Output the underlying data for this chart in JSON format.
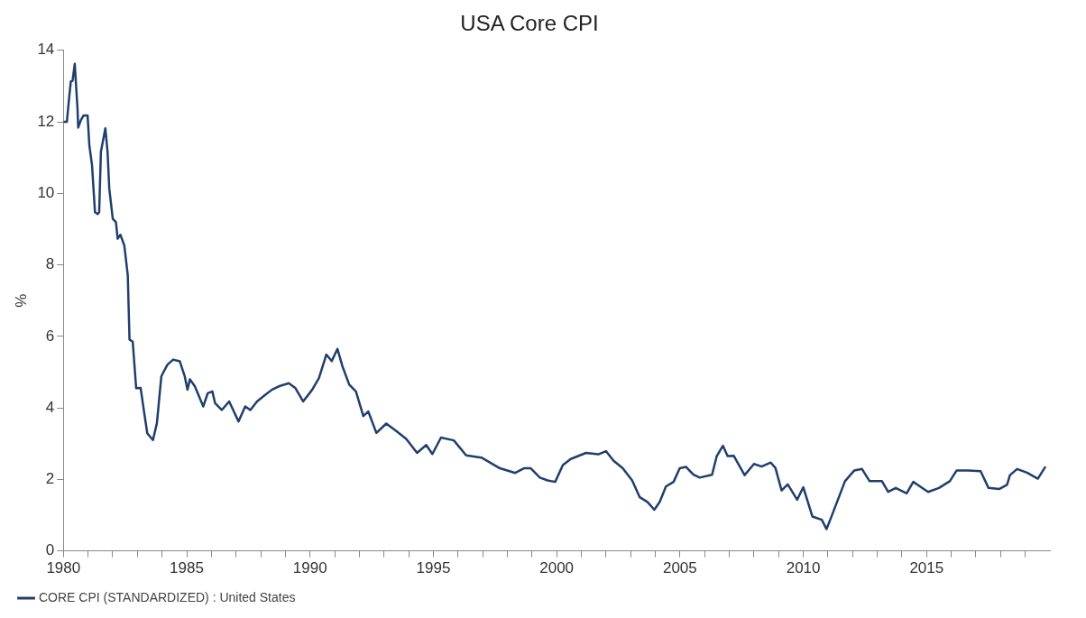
{
  "chart_data": {
    "type": "line",
    "title": "USA Core CPI",
    "ylabel": "%",
    "xlim": [
      1980,
      2020
    ],
    "xticks": [
      {
        "value": 1980,
        "label": "1980"
      },
      {
        "value": 1981,
        "label": null
      },
      {
        "value": 1982,
        "label": null
      },
      {
        "value": 1983,
        "label": null
      },
      {
        "value": 1984,
        "label": null
      },
      {
        "value": 1985,
        "label": "1985"
      },
      {
        "value": 1986,
        "label": null
      },
      {
        "value": 1987,
        "label": null
      },
      {
        "value": 1988,
        "label": null
      },
      {
        "value": 1989,
        "label": null
      },
      {
        "value": 1990,
        "label": "1990"
      },
      {
        "value": 1991,
        "label": null
      },
      {
        "value": 1992,
        "label": null
      },
      {
        "value": 1993,
        "label": null
      },
      {
        "value": 1994,
        "label": null
      },
      {
        "value": 1995,
        "label": "1995"
      },
      {
        "value": 1996,
        "label": null
      },
      {
        "value": 1997,
        "label": null
      },
      {
        "value": 1998,
        "label": null
      },
      {
        "value": 1999,
        "label": null
      },
      {
        "value": 2000,
        "label": "2000"
      },
      {
        "value": 2001,
        "label": null
      },
      {
        "value": 2002,
        "label": null
      },
      {
        "value": 2003,
        "label": null
      },
      {
        "value": 2004,
        "label": null
      },
      {
        "value": 2005,
        "label": "2005"
      },
      {
        "value": 2006,
        "label": null
      },
      {
        "value": 2007,
        "label": null
      },
      {
        "value": 2008,
        "label": null
      },
      {
        "value": 2009,
        "label": null
      },
      {
        "value": 2010,
        "label": "2010"
      },
      {
        "value": 2011,
        "label": null
      },
      {
        "value": 2012,
        "label": null
      },
      {
        "value": 2013,
        "label": null
      },
      {
        "value": 2014,
        "label": null
      },
      {
        "value": 2015,
        "label": "2015"
      },
      {
        "value": 2016,
        "label": null
      },
      {
        "value": 2017,
        "label": null
      },
      {
        "value": 2018,
        "label": null
      },
      {
        "value": 2019,
        "label": null
      }
    ],
    "ylim": [
      0,
      14
    ],
    "yticks": [
      0,
      2,
      4,
      6,
      8,
      10,
      12,
      14
    ],
    "grid": false,
    "legend": "bottom left",
    "marker": "none",
    "line_style": "solid",
    "series": [
      {
        "name": "CORE CPI (STANDARDIZED) : United States",
        "color": "#1f3f6e",
        "x": [
          1980.0,
          1980.14,
          1980.23,
          1980.3,
          1980.37,
          1980.46,
          1980.57,
          1980.6,
          1980.71,
          1980.82,
          1980.98,
          1981.05,
          1981.16,
          1981.28,
          1981.39,
          1981.45,
          1981.52,
          1981.7,
          1981.79,
          1981.86,
          1982.0,
          1982.13,
          1982.2,
          1982.31,
          1982.47,
          1982.61,
          1982.68,
          1982.81,
          1982.95,
          1983.13,
          1983.26,
          1983.4,
          1983.63,
          1983.79,
          1983.97,
          1984.08,
          1984.22,
          1984.45,
          1984.72,
          1984.92,
          1985.03,
          1985.13,
          1985.33,
          1985.67,
          1985.85,
          1986.04,
          1986.15,
          1986.42,
          1986.72,
          1987.1,
          1987.37,
          1987.58,
          1987.85,
          1988.19,
          1988.46,
          1988.73,
          1989.14,
          1989.41,
          1989.72,
          1990.09,
          1990.36,
          1990.66,
          1990.88,
          1991.11,
          1991.31,
          1991.59,
          1991.86,
          1992.16,
          1992.36,
          1992.69,
          1993.09,
          1993.52,
          1993.9,
          1994.34,
          1994.71,
          1994.96,
          1995.31,
          1995.83,
          1996.33,
          1996.95,
          1997.7,
          1998.32,
          1998.67,
          1998.95,
          1999.32,
          1999.63,
          1999.94,
          2000.25,
          2000.57,
          2001.19,
          2001.69,
          2002.0,
          2002.31,
          2002.68,
          2003.06,
          2003.37,
          2003.68,
          2003.96,
          2004.18,
          2004.43,
          2004.74,
          2004.99,
          2005.24,
          2005.55,
          2005.8,
          2006.3,
          2006.49,
          2006.74,
          2006.93,
          2007.18,
          2007.62,
          2008.0,
          2008.31,
          2008.68,
          2008.87,
          2009.12,
          2009.37,
          2009.75,
          2010.0,
          2010.37,
          2010.75,
          2010.94,
          2011.12,
          2011.69,
          2012.07,
          2012.38,
          2012.69,
          2013.19,
          2013.44,
          2013.75,
          2014.19,
          2014.46,
          2015.06,
          2015.5,
          2015.94,
          2016.22,
          2016.69,
          2017.19,
          2017.51,
          2017.94,
          2018.26,
          2018.38,
          2018.67,
          2019.07,
          2019.51,
          2019.82
        ],
        "values": [
          12.0,
          12.0,
          12.66,
          13.13,
          13.15,
          13.62,
          12.38,
          11.84,
          12.05,
          12.18,
          12.18,
          11.35,
          10.79,
          9.47,
          9.42,
          9.47,
          11.16,
          11.82,
          11.16,
          10.13,
          9.29,
          9.19,
          8.73,
          8.84,
          8.54,
          7.7,
          5.91,
          5.85,
          4.55,
          4.56,
          3.94,
          3.29,
          3.1,
          3.57,
          4.88,
          5.03,
          5.21,
          5.35,
          5.3,
          4.88,
          4.51,
          4.8,
          4.6,
          4.04,
          4.41,
          4.46,
          4.13,
          3.94,
          4.18,
          3.62,
          4.04,
          3.94,
          4.18,
          4.37,
          4.51,
          4.6,
          4.69,
          4.55,
          4.18,
          4.51,
          4.83,
          5.49,
          5.31,
          5.65,
          5.17,
          4.65,
          4.46,
          3.77,
          3.9,
          3.3,
          3.56,
          3.34,
          3.13,
          2.74,
          2.96,
          2.71,
          3.17,
          3.09,
          2.67,
          2.61,
          2.31,
          2.18,
          2.31,
          2.31,
          2.05,
          1.97,
          1.93,
          2.4,
          2.57,
          2.74,
          2.7,
          2.79,
          2.52,
          2.31,
          1.97,
          1.5,
          1.37,
          1.15,
          1.37,
          1.8,
          1.93,
          2.31,
          2.35,
          2.13,
          2.05,
          2.13,
          2.65,
          2.94,
          2.65,
          2.66,
          2.12,
          2.43,
          2.36,
          2.47,
          2.32,
          1.69,
          1.86,
          1.43,
          1.78,
          0.96,
          0.87,
          0.61,
          0.92,
          1.95,
          2.25,
          2.29,
          1.95,
          1.95,
          1.65,
          1.76,
          1.61,
          1.93,
          1.65,
          1.76,
          1.95,
          2.25,
          2.25,
          2.23,
          1.76,
          1.73,
          1.85,
          2.12,
          2.29,
          2.19,
          2.02,
          2.36
        ]
      }
    ]
  }
}
